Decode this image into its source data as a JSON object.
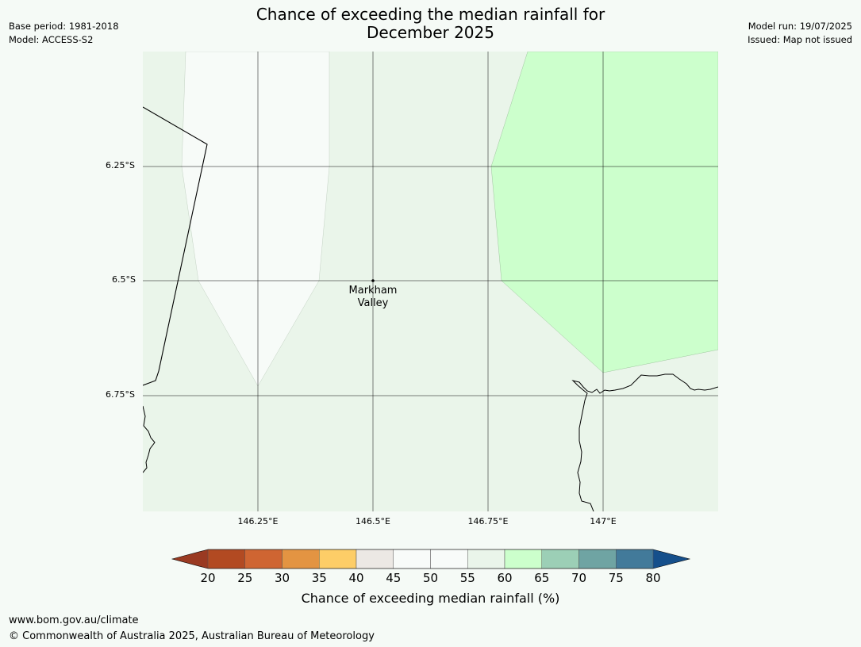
{
  "header": {
    "title_line1": "Chance of exceeding the median rainfall for",
    "title_line2": "December 2025",
    "base_period": "Base period: 1981-2018",
    "model": "Model: ACCESS-S2",
    "model_run": "Model run: 19/07/2025",
    "issued": "Issued: Map not issued"
  },
  "map": {
    "lat_labels": [
      "6.25°S",
      "6.5°S",
      "6.75°S"
    ],
    "lon_labels": [
      "146.25°E",
      "146.5°E",
      "146.75°E",
      "147°E"
    ],
    "place": {
      "name_line1": "Markham",
      "name_line2": "Valley"
    },
    "background_color": "#f5faf6",
    "region_colors": {
      "band_50_55": "#f7fbf8",
      "band_55_60": "#eaf5ea",
      "band_60_65": "#ccffcc"
    }
  },
  "colorbar": {
    "ticks": [
      "20",
      "25",
      "30",
      "35",
      "40",
      "45",
      "50",
      "55",
      "60",
      "65",
      "70",
      "75",
      "80"
    ],
    "label": "Chance of exceeding median rainfall (%)",
    "colors": [
      "#9a3a22",
      "#b24a22",
      "#cf6532",
      "#e39442",
      "#fdcd67",
      "#ece8e4",
      "#f8fbf9",
      "#f8fbf9",
      "#eaf5ea",
      "#ccffcc",
      "#9ccfb6",
      "#6fa4a3",
      "#427a9a",
      "#154f8b"
    ]
  },
  "footer": {
    "url": "www.bom.gov.au/climate",
    "copyright": "© Commonwealth of Australia 2025, Australian Bureau of Meteorology"
  }
}
